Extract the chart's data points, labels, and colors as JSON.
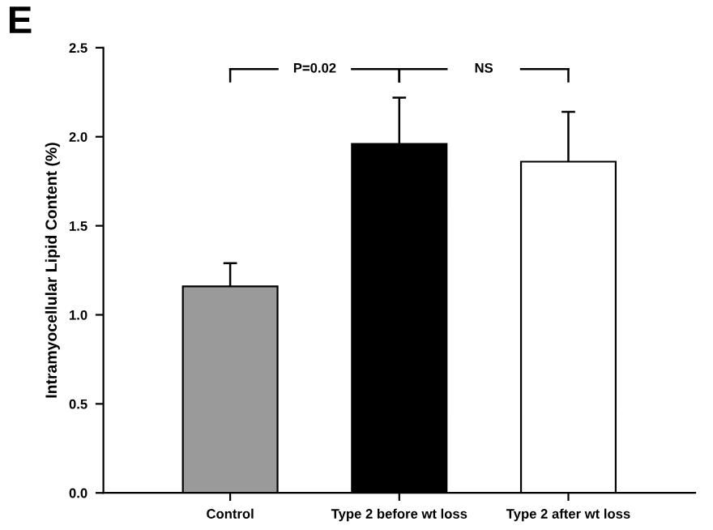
{
  "chart_data": {
    "type": "bar",
    "title": "E",
    "ylabel": "Intramyocellular Lipid Content (%)",
    "categories": [
      "Control",
      "Type 2 before wt loss",
      "Type 2 after wt loss"
    ],
    "values": [
      1.16,
      1.96,
      1.86
    ],
    "colors": [
      "#9a9a9a",
      "#000000",
      "#ffffff"
    ],
    "errors": [
      [
        1.16,
        1.29
      ],
      [
        1.96,
        2.22
      ],
      [
        1.86,
        2.14
      ]
    ],
    "ylim": [
      0,
      2.5
    ],
    "yticks": [
      {
        "value": 0,
        "label": "0.0"
      },
      {
        "value": 0.5,
        "label": "0.5"
      },
      {
        "value": 1,
        "label": "1.0"
      },
      {
        "value": 1.5,
        "label": "1.5"
      },
      {
        "value": 2,
        "label": "2.0"
      },
      {
        "value": 2.5,
        "label": "2.5"
      }
    ],
    "annotations": [
      "P=0.02",
      "NS"
    ],
    "grid": false,
    "legend": false
  }
}
